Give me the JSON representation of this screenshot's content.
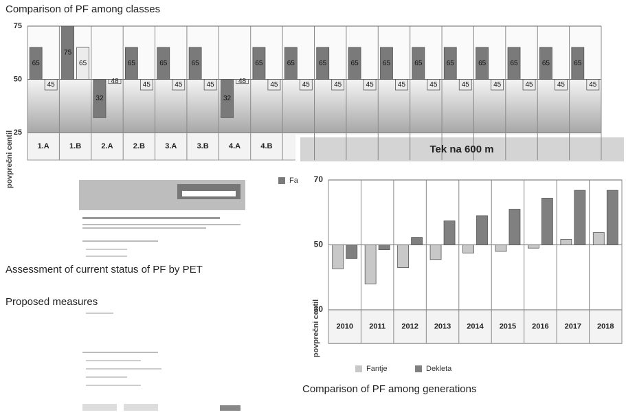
{
  "captions": [
    "Comparison of PF among classes",
    "Assessment of current status of PF by PET",
    "Proposed measures",
    "Comparison of PF among generations"
  ],
  "chart_data": [
    {
      "type": "bar",
      "ylabel": "povprečni centil",
      "baseline": 50,
      "categories": [
        "1.A",
        "1.B",
        "2.A",
        "2.B",
        "3.A",
        "3.B",
        "4.A",
        "4.B",
        null,
        null,
        null,
        null,
        null,
        null,
        null,
        null,
        null,
        null
      ],
      "series": [
        {
          "name": "Fa",
          "color": "#7a7a7a",
          "values": [
            65,
            75,
            32,
            65,
            65,
            65,
            32,
            65,
            65,
            65,
            65,
            65,
            65,
            65,
            65,
            65,
            65,
            65
          ]
        },
        {
          "color": "#ececec",
          "values": [
            45,
            65,
            48,
            45,
            45,
            45,
            48,
            45,
            45,
            45,
            45,
            45,
            45,
            45,
            45,
            45,
            45,
            45
          ]
        }
      ],
      "ylim": [
        25,
        75
      ],
      "yticks": [
        25,
        50,
        75
      ],
      "grid": true
    },
    {
      "type": "bar",
      "title": "Tek na 600 m",
      "ylabel": "povprečni centil",
      "baseline": 50,
      "categories": [
        "2010",
        "2011",
        "2012",
        "2013",
        "2014",
        "2015",
        "2016",
        "2017",
        "2018"
      ],
      "series": [
        {
          "name": "Fantje",
          "color": "#c8c8c8",
          "values": [
            42.6,
            38,
            43,
            45.5,
            47.5,
            48,
            49,
            51.7,
            53.8
          ]
        },
        {
          "name": "Dekleta",
          "color": "#808080",
          "values": [
            45.8,
            48.5,
            52.3,
            57.4,
            59,
            61,
            64.4,
            66.8,
            66.8
          ]
        }
      ],
      "ylim": [
        30,
        70
      ],
      "yticks": [
        30,
        50,
        70
      ],
      "grid": true
    }
  ]
}
